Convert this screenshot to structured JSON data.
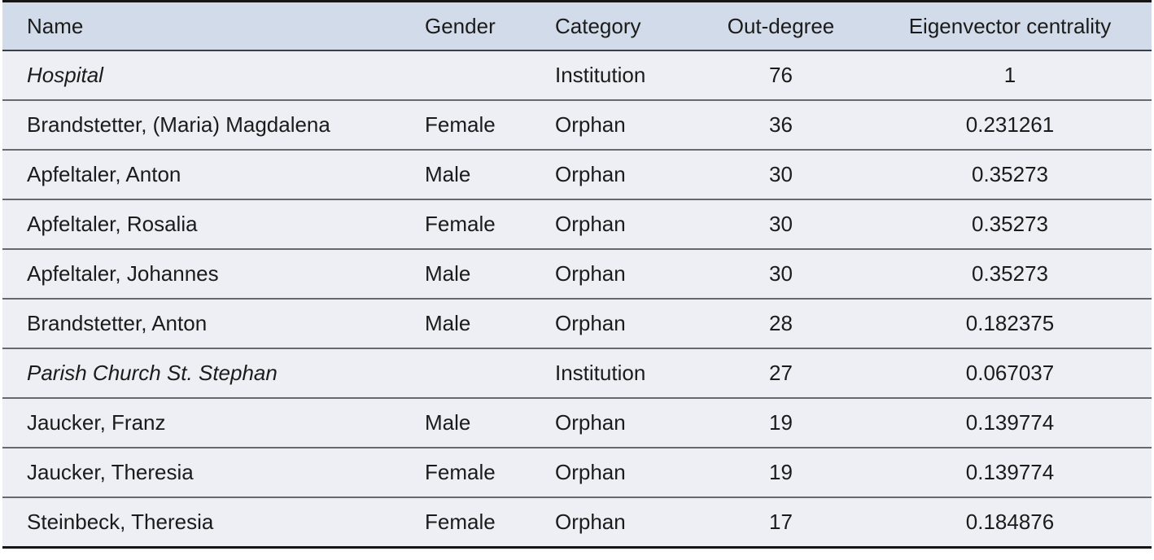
{
  "table": {
    "columns": [
      {
        "label": "Name",
        "align": "left"
      },
      {
        "label": "Gender",
        "align": "left"
      },
      {
        "label": "Category",
        "align": "left"
      },
      {
        "label": "Out-degree",
        "align": "center"
      },
      {
        "label": "Eigenvector centrality",
        "align": "center"
      }
    ],
    "rows": [
      {
        "cells": [
          "Hospital",
          "",
          "Institution",
          "76",
          "1"
        ],
        "name_italic": true
      },
      {
        "cells": [
          "Brandstetter, (Maria) Magdalena",
          "Female",
          "Orphan",
          "36",
          "0.231261"
        ],
        "name_italic": false
      },
      {
        "cells": [
          "Apfeltaler, Anton",
          "Male",
          "Orphan",
          "30",
          "0.35273"
        ],
        "name_italic": false
      },
      {
        "cells": [
          "Apfeltaler, Rosalia",
          "Female",
          "Orphan",
          "30",
          "0.35273"
        ],
        "name_italic": false
      },
      {
        "cells": [
          "Apfeltaler, Johannes",
          "Male",
          "Orphan",
          "30",
          "0.35273"
        ],
        "name_italic": false
      },
      {
        "cells": [
          "Brandstetter, Anton",
          "Male",
          "Orphan",
          "28",
          "0.182375"
        ],
        "name_italic": false
      },
      {
        "cells": [
          "Parish Church St. Stephan",
          "",
          "Institution",
          "27",
          "0.067037"
        ],
        "name_italic": true
      },
      {
        "cells": [
          "Jaucker, Franz",
          "Male",
          "Orphan",
          "19",
          "0.139774"
        ],
        "name_italic": false
      },
      {
        "cells": [
          "Jaucker, Theresia",
          "Female",
          "Orphan",
          "19",
          "0.139774"
        ],
        "name_italic": false
      },
      {
        "cells": [
          "Steinbeck, Theresia",
          "Female",
          "Orphan",
          "17",
          "0.184876"
        ],
        "name_italic": false
      }
    ],
    "colors": {
      "header_bg": "#d2dbe9",
      "row_bg": "#edeff5",
      "outer_border": "#151515",
      "header_rule": "#3c3f46",
      "row_rule": "#666a70",
      "text": "#1b1b1b"
    }
  },
  "chart_data": {
    "type": "table",
    "title": "",
    "columns": [
      "Name",
      "Gender",
      "Category",
      "Out-degree",
      "Eigenvector centrality"
    ],
    "rows": [
      [
        "Hospital",
        "",
        "Institution",
        76,
        1
      ],
      [
        "Brandstetter, (Maria) Magdalena",
        "Female",
        "Orphan",
        36,
        0.231261
      ],
      [
        "Apfeltaler, Anton",
        "Male",
        "Orphan",
        30,
        0.35273
      ],
      [
        "Apfeltaler, Rosalia",
        "Female",
        "Orphan",
        30,
        0.35273
      ],
      [
        "Apfeltaler, Johannes",
        "Male",
        "Orphan",
        30,
        0.35273
      ],
      [
        "Brandstetter, Anton",
        "Male",
        "Orphan",
        28,
        0.182375
      ],
      [
        "Parish Church St. Stephan",
        "",
        "Institution",
        27,
        0.067037
      ],
      [
        "Jaucker, Franz",
        "Male",
        "Orphan",
        19,
        0.139774
      ],
      [
        "Jaucker, Theresia",
        "Female",
        "Orphan",
        19,
        0.139774
      ],
      [
        "Steinbeck, Theresia",
        "Female",
        "Orphan",
        17,
        0.184876
      ]
    ]
  }
}
